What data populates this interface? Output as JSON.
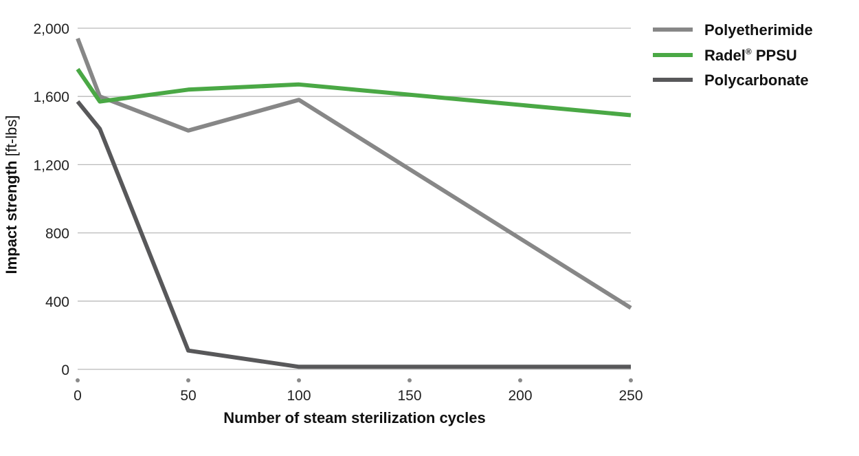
{
  "chart_data": {
    "type": "line",
    "title": "",
    "xlabel": "Number of steam sterilization cycles",
    "ylabel": "Impact strength",
    "ylabel_unit": "[ft-lbs]",
    "xlim": [
      0,
      250
    ],
    "ylim": [
      0,
      2000
    ],
    "x_ticks": [
      0,
      50,
      100,
      150,
      200,
      250
    ],
    "x_tick_labels": [
      "0",
      "50",
      "100",
      "150",
      "200",
      "250"
    ],
    "y_ticks": [
      0,
      400,
      800,
      1200,
      1600,
      2000
    ],
    "y_tick_labels": [
      "0",
      "400",
      "800",
      "1,200",
      "1,600",
      "2,000"
    ],
    "grid": "horizontal",
    "legend_position": "top-right",
    "series": [
      {
        "name": "Polyetherimide",
        "color": "#878787",
        "x": [
          0,
          10,
          50,
          100,
          250
        ],
        "y": [
          1940,
          1600,
          1400,
          1580,
          360
        ]
      },
      {
        "name": "Radel® PPSU",
        "legend_main": "Radel",
        "legend_sup": "®",
        "legend_rest": " PPSU",
        "color": "#4aa845",
        "x": [
          0,
          10,
          50,
          100,
          250
        ],
        "y": [
          1760,
          1570,
          1640,
          1670,
          1490
        ]
      },
      {
        "name": "Polycarbonate",
        "color": "#58585a",
        "x": [
          0,
          10,
          50,
          100,
          250
        ],
        "y": [
          1570,
          1410,
          110,
          15,
          15
        ]
      }
    ]
  }
}
